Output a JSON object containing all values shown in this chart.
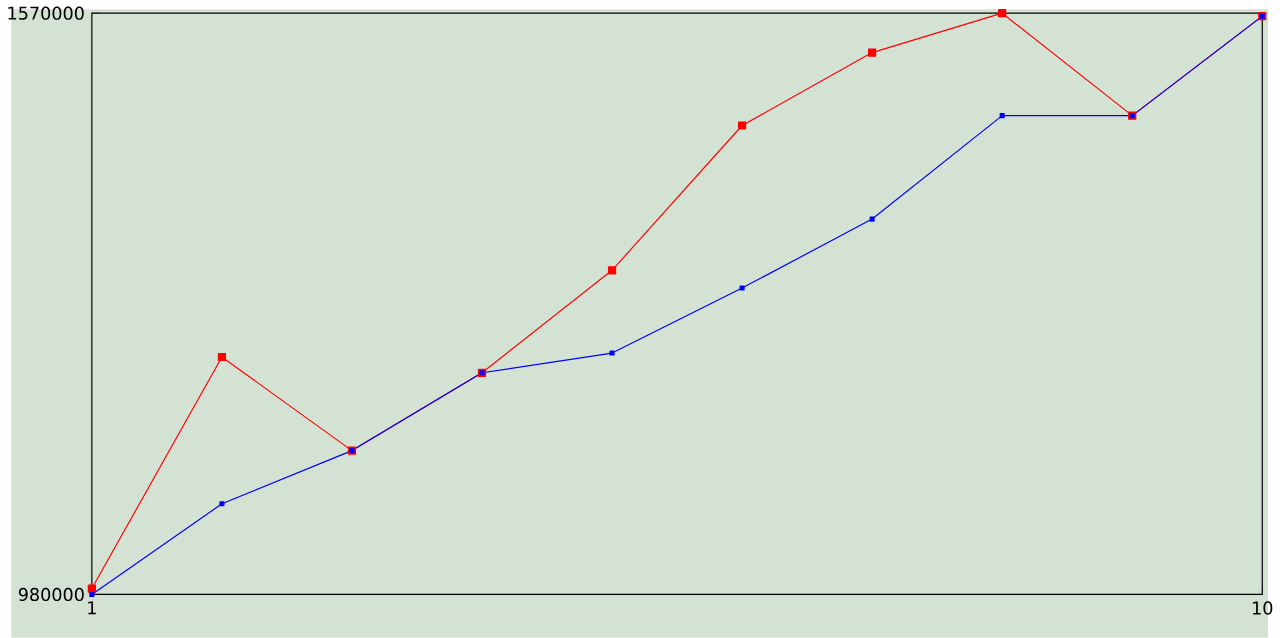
{
  "chart_data": {
    "type": "line",
    "x": [
      1,
      2,
      3,
      4,
      5,
      6,
      7,
      8,
      9,
      10
    ],
    "series": [
      {
        "color": "#ff0000",
        "values": [
          986000,
          1221000,
          1126000,
          1205000,
          1309000,
          1456000,
          1530000,
          1570000,
          1466000,
          1567000
        ]
      },
      {
        "color": "#0000ff",
        "values": [
          980000,
          1072000,
          1126000,
          1205000,
          1225000,
          1291000,
          1361000,
          1466000,
          1466000,
          1567000
        ]
      }
    ],
    "xlim": [
      1,
      10
    ],
    "ylim": [
      980000,
      1570000
    ],
    "xticks": [
      1,
      10
    ],
    "yticks": [
      980000,
      1570000
    ],
    "marker": "square",
    "line_style": "solid"
  }
}
